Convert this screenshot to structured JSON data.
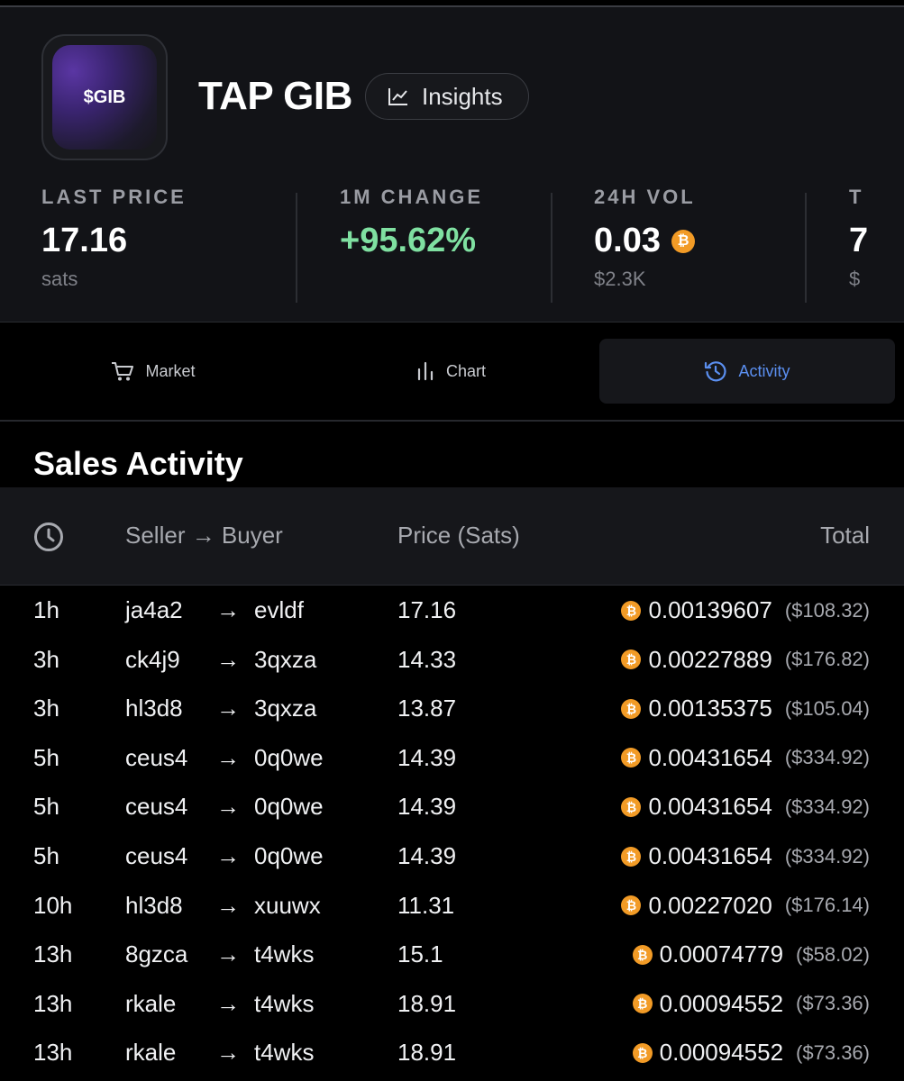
{
  "token": {
    "logo_text": "$GIB",
    "name": "TAP GIB",
    "insights_label": "Insights"
  },
  "stats": {
    "last_price": {
      "label": "LAST PRICE",
      "value": "17.16",
      "sub": "sats"
    },
    "change": {
      "label": "1M CHANGE",
      "value": "+95.62%"
    },
    "vol": {
      "label": "24H VOL",
      "value": "0.03",
      "sub": "$2.3K"
    },
    "partial": {
      "label": "T",
      "value": "7",
      "sub": "$"
    }
  },
  "colors": {
    "positive": "#7fe0a1",
    "accent": "#5b8ff0",
    "bitcoin": "#f29b26"
  },
  "tabs": {
    "market": {
      "label": "Market",
      "icon": "cart-icon"
    },
    "chart": {
      "label": "Chart",
      "icon": "bar-chart-icon"
    },
    "activity": {
      "label": "Activity",
      "icon": "history-icon",
      "active": true
    }
  },
  "section_title": "Sales Activity",
  "table": {
    "headers": {
      "time_icon": "clock-icon",
      "parties": "Seller → Buyer",
      "price": "Price (Sats)",
      "total": "Total"
    },
    "rows": [
      {
        "time": "1h",
        "seller": "ja4a2",
        "buyer": "evldf",
        "price": "17.16",
        "btc": "0.00139607",
        "usd": "($108.32)"
      },
      {
        "time": "3h",
        "seller": "ck4j9",
        "buyer": "3qxza",
        "price": "14.33",
        "btc": "0.00227889",
        "usd": "($176.82)"
      },
      {
        "time": "3h",
        "seller": "hl3d8",
        "buyer": "3qxza",
        "price": "13.87",
        "btc": "0.00135375",
        "usd": "($105.04)"
      },
      {
        "time": "5h",
        "seller": "ceus4",
        "buyer": "0q0we",
        "price": "14.39",
        "btc": "0.00431654",
        "usd": "($334.92)"
      },
      {
        "time": "5h",
        "seller": "ceus4",
        "buyer": "0q0we",
        "price": "14.39",
        "btc": "0.00431654",
        "usd": "($334.92)"
      },
      {
        "time": "5h",
        "seller": "ceus4",
        "buyer": "0q0we",
        "price": "14.39",
        "btc": "0.00431654",
        "usd": "($334.92)"
      },
      {
        "time": "10h",
        "seller": "hl3d8",
        "buyer": "xuuwx",
        "price": "11.31",
        "btc": "0.00227020",
        "usd": "($176.14)"
      },
      {
        "time": "13h",
        "seller": "8gzca",
        "buyer": "t4wks",
        "price": "15.1",
        "btc": "0.00074779",
        "usd": "($58.02)"
      },
      {
        "time": "13h",
        "seller": "rkale",
        "buyer": "t4wks",
        "price": "18.91",
        "btc": "0.00094552",
        "usd": "($73.36)"
      },
      {
        "time": "13h",
        "seller": "rkale",
        "buyer": "t4wks",
        "price": "18.91",
        "btc": "0.00094552",
        "usd": "($73.36)"
      }
    ]
  }
}
